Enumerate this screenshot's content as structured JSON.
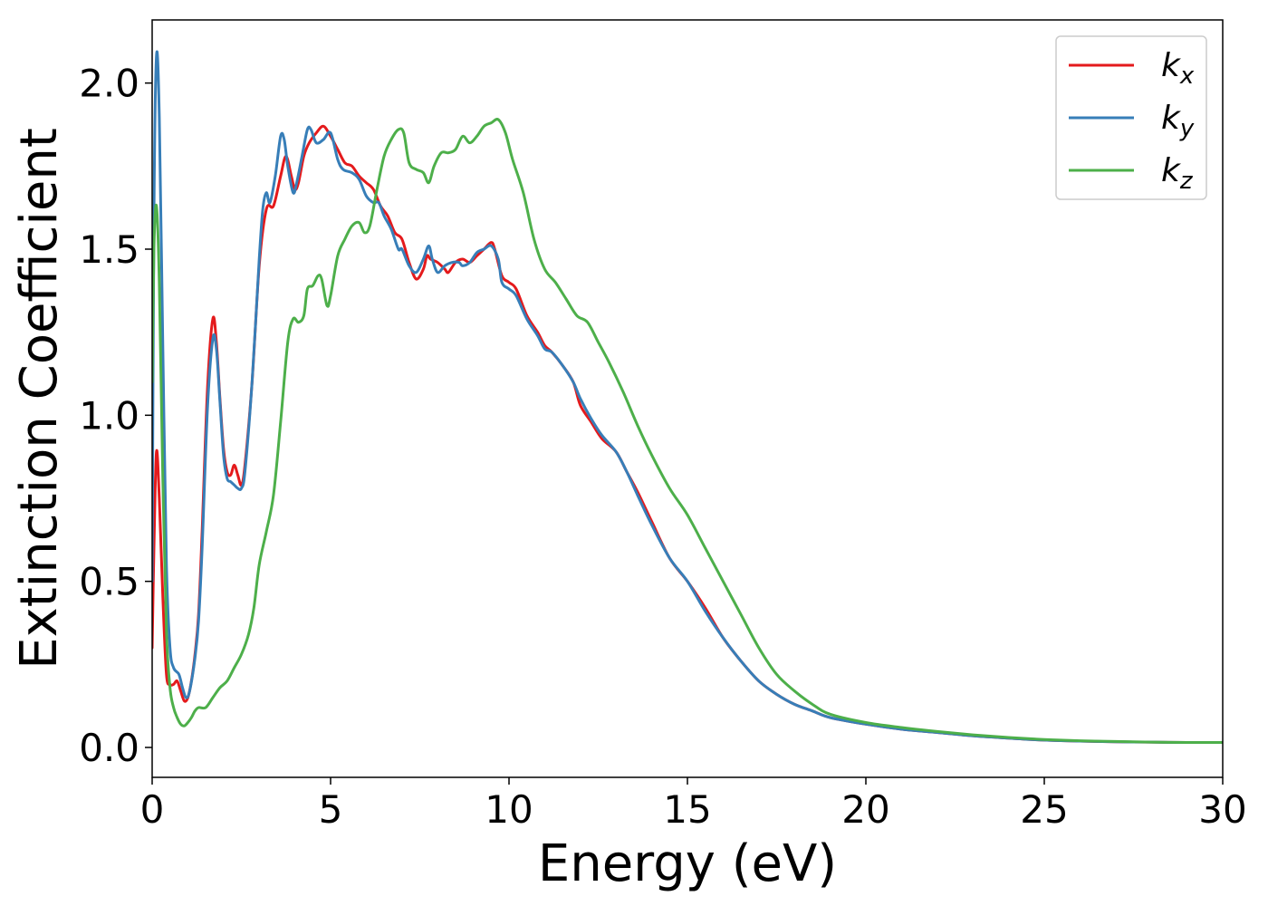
{
  "chart_data": {
    "type": "line",
    "xlabel": "Energy (eV)",
    "ylabel": "Extinction Coefficient",
    "xlim": [
      0,
      30
    ],
    "ylim": [
      -0.09,
      2.19
    ],
    "xticks": [
      0,
      5,
      10,
      15,
      20,
      25,
      30
    ],
    "yticks": [
      0.0,
      0.5,
      1.0,
      1.5,
      2.0
    ],
    "xtick_labels": [
      "0",
      "5",
      "10",
      "15",
      "20",
      "25",
      "30"
    ],
    "ytick_labels": [
      "0.0",
      "0.5",
      "1.0",
      "1.5",
      "2.0"
    ],
    "grid": false,
    "legend_position": "top-right",
    "series": [
      {
        "name": "k",
        "subscript": "x",
        "color": "#e41a1c",
        "points": [
          [
            0,
            0.3
          ],
          [
            0.05,
            0.6
          ],
          [
            0.12,
            0.89
          ],
          [
            0.2,
            0.75
          ],
          [
            0.3,
            0.45
          ],
          [
            0.4,
            0.22
          ],
          [
            0.5,
            0.19
          ],
          [
            0.6,
            0.19
          ],
          [
            0.7,
            0.2
          ],
          [
            0.8,
            0.17
          ],
          [
            0.9,
            0.14
          ],
          [
            1.0,
            0.15
          ],
          [
            1.1,
            0.2
          ],
          [
            1.2,
            0.28
          ],
          [
            1.3,
            0.4
          ],
          [
            1.4,
            0.65
          ],
          [
            1.55,
            1.08
          ],
          [
            1.7,
            1.29
          ],
          [
            1.8,
            1.22
          ],
          [
            1.9,
            1.05
          ],
          [
            2.0,
            0.9
          ],
          [
            2.1,
            0.83
          ],
          [
            2.2,
            0.82
          ],
          [
            2.3,
            0.85
          ],
          [
            2.4,
            0.82
          ],
          [
            2.5,
            0.79
          ],
          [
            2.6,
            0.85
          ],
          [
            2.8,
            1.1
          ],
          [
            3.0,
            1.45
          ],
          [
            3.2,
            1.62
          ],
          [
            3.4,
            1.63
          ],
          [
            3.6,
            1.72
          ],
          [
            3.75,
            1.78
          ],
          [
            3.9,
            1.72
          ],
          [
            4.0,
            1.68
          ],
          [
            4.1,
            1.7
          ],
          [
            4.25,
            1.78
          ],
          [
            4.4,
            1.82
          ],
          [
            4.6,
            1.85
          ],
          [
            4.8,
            1.87
          ],
          [
            5.0,
            1.84
          ],
          [
            5.2,
            1.8
          ],
          [
            5.4,
            1.76
          ],
          [
            5.6,
            1.75
          ],
          [
            5.8,
            1.72
          ],
          [
            6.0,
            1.7
          ],
          [
            6.2,
            1.68
          ],
          [
            6.4,
            1.63
          ],
          [
            6.6,
            1.6
          ],
          [
            6.8,
            1.55
          ],
          [
            7.0,
            1.53
          ],
          [
            7.2,
            1.46
          ],
          [
            7.4,
            1.41
          ],
          [
            7.6,
            1.44
          ],
          [
            7.7,
            1.48
          ],
          [
            7.8,
            1.47
          ],
          [
            8.0,
            1.46
          ],
          [
            8.2,
            1.44
          ],
          [
            8.3,
            1.43
          ],
          [
            8.5,
            1.46
          ],
          [
            8.7,
            1.47
          ],
          [
            8.9,
            1.46
          ],
          [
            9.1,
            1.48
          ],
          [
            9.3,
            1.5
          ],
          [
            9.5,
            1.52
          ],
          [
            9.6,
            1.5
          ],
          [
            9.8,
            1.42
          ],
          [
            10.0,
            1.4
          ],
          [
            10.2,
            1.38
          ],
          [
            10.5,
            1.3
          ],
          [
            10.8,
            1.25
          ],
          [
            11.0,
            1.21
          ],
          [
            11.2,
            1.19
          ],
          [
            11.5,
            1.15
          ],
          [
            11.8,
            1.1
          ],
          [
            12.0,
            1.03
          ],
          [
            12.3,
            0.98
          ],
          [
            12.6,
            0.93
          ],
          [
            13.0,
            0.89
          ],
          [
            13.3,
            0.83
          ],
          [
            13.6,
            0.77
          ],
          [
            14.0,
            0.68
          ],
          [
            14.5,
            0.57
          ],
          [
            15.0,
            0.5
          ],
          [
            15.5,
            0.42
          ],
          [
            16.0,
            0.33
          ],
          [
            16.5,
            0.26
          ],
          [
            17.0,
            0.2
          ],
          [
            17.5,
            0.16
          ],
          [
            18.0,
            0.13
          ],
          [
            18.5,
            0.11
          ],
          [
            19.0,
            0.09
          ],
          [
            20.0,
            0.07
          ],
          [
            21.0,
            0.055
          ],
          [
            22.0,
            0.045
          ],
          [
            23.0,
            0.035
          ],
          [
            24.0,
            0.028
          ],
          [
            25.0,
            0.022
          ],
          [
            26.0,
            0.019
          ],
          [
            27.0,
            0.017
          ],
          [
            28.0,
            0.016
          ],
          [
            29.0,
            0.015
          ],
          [
            30.0,
            0.015
          ]
        ]
      },
      {
        "name": "k",
        "subscript": "y",
        "color": "#377eb8",
        "points": [
          [
            0,
            0.5
          ],
          [
            0.05,
            1.6
          ],
          [
            0.12,
            2.08
          ],
          [
            0.2,
            1.9
          ],
          [
            0.3,
            1.2
          ],
          [
            0.4,
            0.55
          ],
          [
            0.5,
            0.3
          ],
          [
            0.6,
            0.24
          ],
          [
            0.75,
            0.22
          ],
          [
            0.85,
            0.18
          ],
          [
            0.95,
            0.15
          ],
          [
            1.05,
            0.17
          ],
          [
            1.2,
            0.27
          ],
          [
            1.3,
            0.38
          ],
          [
            1.4,
            0.6
          ],
          [
            1.55,
            1.02
          ],
          [
            1.7,
            1.23
          ],
          [
            1.8,
            1.2
          ],
          [
            1.9,
            1.04
          ],
          [
            2.0,
            0.88
          ],
          [
            2.1,
            0.81
          ],
          [
            2.2,
            0.8
          ],
          [
            2.3,
            0.79
          ],
          [
            2.4,
            0.78
          ],
          [
            2.5,
            0.78
          ],
          [
            2.6,
            0.83
          ],
          [
            2.8,
            1.1
          ],
          [
            3.0,
            1.47
          ],
          [
            3.1,
            1.62
          ],
          [
            3.2,
            1.67
          ],
          [
            3.3,
            1.64
          ],
          [
            3.45,
            1.72
          ],
          [
            3.6,
            1.84
          ],
          [
            3.7,
            1.83
          ],
          [
            3.8,
            1.75
          ],
          [
            3.95,
            1.67
          ],
          [
            4.05,
            1.7
          ],
          [
            4.2,
            1.78
          ],
          [
            4.35,
            1.86
          ],
          [
            4.45,
            1.86
          ],
          [
            4.6,
            1.82
          ],
          [
            4.8,
            1.83
          ],
          [
            5.0,
            1.85
          ],
          [
            5.2,
            1.77
          ],
          [
            5.35,
            1.74
          ],
          [
            5.6,
            1.73
          ],
          [
            5.8,
            1.71
          ],
          [
            6.0,
            1.66
          ],
          [
            6.2,
            1.64
          ],
          [
            6.35,
            1.64
          ],
          [
            6.5,
            1.6
          ],
          [
            6.7,
            1.56
          ],
          [
            6.9,
            1.5
          ],
          [
            7.0,
            1.5
          ],
          [
            7.2,
            1.45
          ],
          [
            7.4,
            1.43
          ],
          [
            7.6,
            1.47
          ],
          [
            7.75,
            1.51
          ],
          [
            7.85,
            1.47
          ],
          [
            8.0,
            1.43
          ],
          [
            8.2,
            1.45
          ],
          [
            8.4,
            1.46
          ],
          [
            8.6,
            1.46
          ],
          [
            8.7,
            1.45
          ],
          [
            8.9,
            1.46
          ],
          [
            9.1,
            1.49
          ],
          [
            9.3,
            1.5
          ],
          [
            9.5,
            1.51
          ],
          [
            9.7,
            1.47
          ],
          [
            9.8,
            1.4
          ],
          [
            10.0,
            1.38
          ],
          [
            10.2,
            1.36
          ],
          [
            10.5,
            1.29
          ],
          [
            10.8,
            1.24
          ],
          [
            11.0,
            1.2
          ],
          [
            11.2,
            1.19
          ],
          [
            11.5,
            1.15
          ],
          [
            11.8,
            1.1
          ],
          [
            12.0,
            1.05
          ],
          [
            12.3,
            0.99
          ],
          [
            12.6,
            0.94
          ],
          [
            13.0,
            0.89
          ],
          [
            13.3,
            0.83
          ],
          [
            13.6,
            0.76
          ],
          [
            14.0,
            0.67
          ],
          [
            14.5,
            0.57
          ],
          [
            15.0,
            0.5
          ],
          [
            15.5,
            0.41
          ],
          [
            16.0,
            0.33
          ],
          [
            16.5,
            0.26
          ],
          [
            17.0,
            0.2
          ],
          [
            17.5,
            0.16
          ],
          [
            18.0,
            0.13
          ],
          [
            18.5,
            0.11
          ],
          [
            19.0,
            0.09
          ],
          [
            20.0,
            0.07
          ],
          [
            21.0,
            0.055
          ],
          [
            22.0,
            0.045
          ],
          [
            23.0,
            0.035
          ],
          [
            24.0,
            0.028
          ],
          [
            25.0,
            0.022
          ],
          [
            26.0,
            0.019
          ],
          [
            27.0,
            0.017
          ],
          [
            28.0,
            0.016
          ],
          [
            29.0,
            0.015
          ],
          [
            30.0,
            0.015
          ]
        ]
      },
      {
        "name": "k",
        "subscript": "z",
        "color": "#4daf4a",
        "points": [
          [
            0,
            1.1
          ],
          [
            0.05,
            1.5
          ],
          [
            0.12,
            1.63
          ],
          [
            0.2,
            1.4
          ],
          [
            0.3,
            0.8
          ],
          [
            0.4,
            0.35
          ],
          [
            0.5,
            0.18
          ],
          [
            0.6,
            0.12
          ],
          [
            0.7,
            0.09
          ],
          [
            0.8,
            0.07
          ],
          [
            0.9,
            0.065
          ],
          [
            1.0,
            0.075
          ],
          [
            1.1,
            0.09
          ],
          [
            1.2,
            0.11
          ],
          [
            1.3,
            0.12
          ],
          [
            1.5,
            0.12
          ],
          [
            1.7,
            0.15
          ],
          [
            1.9,
            0.18
          ],
          [
            2.1,
            0.2
          ],
          [
            2.3,
            0.24
          ],
          [
            2.5,
            0.28
          ],
          [
            2.7,
            0.34
          ],
          [
            2.85,
            0.42
          ],
          [
            3.0,
            0.55
          ],
          [
            3.2,
            0.65
          ],
          [
            3.4,
            0.76
          ],
          [
            3.6,
            0.98
          ],
          [
            3.8,
            1.22
          ],
          [
            3.95,
            1.29
          ],
          [
            4.1,
            1.28
          ],
          [
            4.25,
            1.3
          ],
          [
            4.35,
            1.38
          ],
          [
            4.5,
            1.39
          ],
          [
            4.65,
            1.42
          ],
          [
            4.75,
            1.41
          ],
          [
            4.9,
            1.33
          ],
          [
            5.0,
            1.36
          ],
          [
            5.2,
            1.48
          ],
          [
            5.4,
            1.53
          ],
          [
            5.6,
            1.57
          ],
          [
            5.8,
            1.58
          ],
          [
            5.95,
            1.55
          ],
          [
            6.1,
            1.57
          ],
          [
            6.3,
            1.68
          ],
          [
            6.5,
            1.78
          ],
          [
            6.7,
            1.83
          ],
          [
            6.9,
            1.86
          ],
          [
            7.05,
            1.85
          ],
          [
            7.2,
            1.76
          ],
          [
            7.4,
            1.74
          ],
          [
            7.6,
            1.73
          ],
          [
            7.75,
            1.7
          ],
          [
            7.9,
            1.75
          ],
          [
            8.1,
            1.79
          ],
          [
            8.3,
            1.79
          ],
          [
            8.5,
            1.8
          ],
          [
            8.7,
            1.84
          ],
          [
            8.9,
            1.82
          ],
          [
            9.1,
            1.84
          ],
          [
            9.3,
            1.87
          ],
          [
            9.5,
            1.88
          ],
          [
            9.7,
            1.89
          ],
          [
            9.9,
            1.85
          ],
          [
            10.1,
            1.77
          ],
          [
            10.4,
            1.67
          ],
          [
            10.7,
            1.53
          ],
          [
            11.0,
            1.44
          ],
          [
            11.3,
            1.4
          ],
          [
            11.6,
            1.35
          ],
          [
            11.9,
            1.3
          ],
          [
            12.2,
            1.28
          ],
          [
            12.5,
            1.22
          ],
          [
            12.8,
            1.16
          ],
          [
            13.2,
            1.07
          ],
          [
            13.6,
            0.97
          ],
          [
            14.0,
            0.88
          ],
          [
            14.5,
            0.78
          ],
          [
            15.0,
            0.7
          ],
          [
            15.5,
            0.6
          ],
          [
            16.0,
            0.5
          ],
          [
            16.5,
            0.4
          ],
          [
            17.0,
            0.3
          ],
          [
            17.5,
            0.22
          ],
          [
            18.0,
            0.17
          ],
          [
            18.5,
            0.13
          ],
          [
            19.0,
            0.1
          ],
          [
            20.0,
            0.075
          ],
          [
            21.0,
            0.06
          ],
          [
            22.0,
            0.048
          ],
          [
            23.0,
            0.038
          ],
          [
            24.0,
            0.03
          ],
          [
            25.0,
            0.024
          ],
          [
            26.0,
            0.02
          ],
          [
            27.0,
            0.018
          ],
          [
            28.0,
            0.016
          ],
          [
            29.0,
            0.015
          ],
          [
            30.0,
            0.015
          ]
        ]
      }
    ]
  }
}
